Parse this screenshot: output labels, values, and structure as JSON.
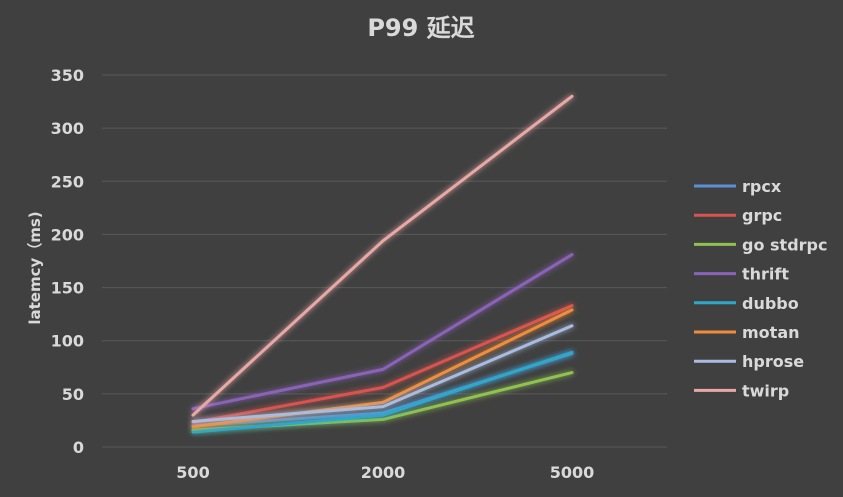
{
  "chart_data": {
    "type": "line",
    "title": "P99 延迟",
    "xlabel": "",
    "ylabel": "latemcy（ms)",
    "categories": [
      "500",
      "2000",
      "5000"
    ],
    "ylim": [
      0,
      350
    ],
    "yticks": [
      0,
      50,
      100,
      150,
      200,
      250,
      300,
      350
    ],
    "grid": true,
    "legend_position": "right",
    "series": [
      {
        "name": "rpcx",
        "color": "#5b8fd6",
        "values": [
          20,
          32,
          88
        ]
      },
      {
        "name": "grpc",
        "color": "#d9534f",
        "values": [
          23,
          56,
          133
        ]
      },
      {
        "name": "go stdrpc",
        "color": "#8fc24f",
        "values": [
          16,
          26,
          70
        ]
      },
      {
        "name": "thrift",
        "color": "#8a63b8",
        "values": [
          36,
          73,
          181
        ]
      },
      {
        "name": "dubbo",
        "color": "#2fa7c9",
        "values": [
          14,
          30,
          89
        ]
      },
      {
        "name": "motan",
        "color": "#f08d3c",
        "values": [
          19,
          42,
          129
        ]
      },
      {
        "name": "hprose",
        "color": "#a9bcdf",
        "values": [
          24,
          38,
          114
        ]
      },
      {
        "name": "twirp",
        "color": "#e8a8a6",
        "values": [
          30,
          194,
          330
        ]
      }
    ]
  }
}
